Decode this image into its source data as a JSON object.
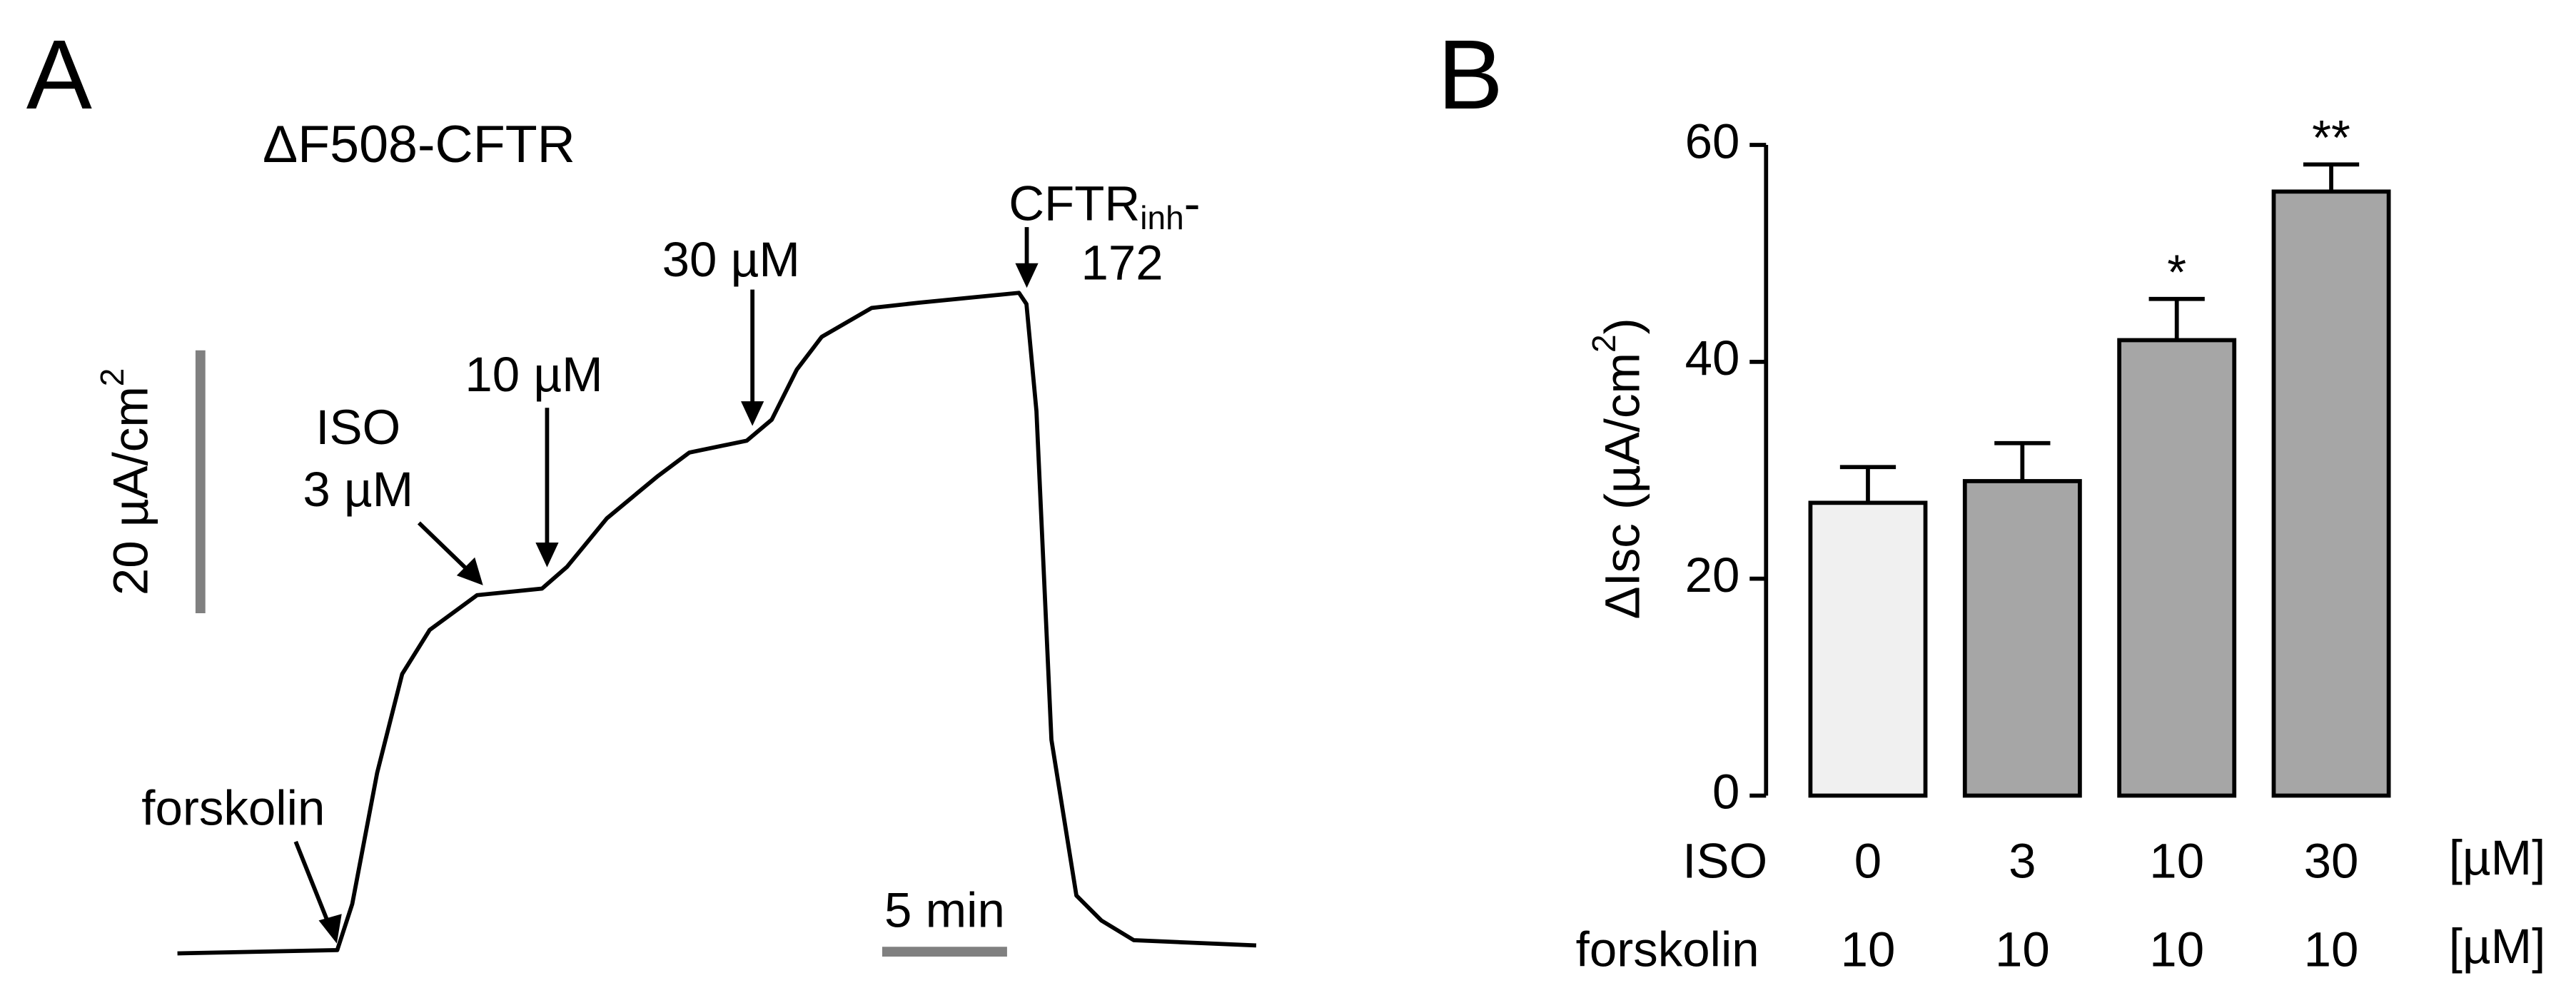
{
  "chart_data": [
    {
      "type": "line",
      "panel": "A",
      "title": "ΔF508-CFTR",
      "x": [
        0,
        6.4,
        7.0,
        8.0,
        9.0,
        10.1,
        12.0,
        14.6,
        15.6,
        17.2,
        19.2,
        20.5,
        22.8,
        23.8,
        24.8,
        25.8,
        27.8,
        29.7,
        33.7,
        34.0,
        34.4,
        35.0,
        36.0,
        37.0,
        38.3,
        43.2
      ],
      "values": [
        0,
        0.25,
        3.75,
        13.75,
        21.25,
        24.6,
        27.25,
        27.75,
        29.4,
        33.1,
        36.25,
        38.1,
        39,
        40.6,
        44.4,
        46.9,
        49.1,
        49.5,
        50.25,
        49.4,
        41.25,
        16.25,
        4.4,
        2.5,
        1,
        0.6
      ],
      "color": "#000000",
      "annotations": [
        "forskolin",
        "ISO",
        "3 µM",
        "10 µM",
        "30 µM",
        "172"
      ],
      "inhibitor": {
        "base": "CFTR",
        "sub": "inh",
        "suffix": "-"
      },
      "scale_x": {
        "value": 5,
        "label": "5 min"
      },
      "scale_y": {
        "value": 20,
        "label": "20 µA/cm",
        "label_sup": "2"
      },
      "scale_color": "#808080"
    },
    {
      "type": "bar",
      "panel": "B",
      "ylabel": "ΔIsc (µA/cm",
      "ylabel_sup": "2",
      "ylabel_end": ")",
      "category_label": "ISO",
      "categories": [
        "0",
        "3",
        "10",
        "30"
      ],
      "category_unit": "[µM]",
      "second_row": {
        "label": "forskolin",
        "values": [
          "10",
          "10",
          "10",
          "10"
        ],
        "unit": "[µM]"
      },
      "values": [
        27,
        29,
        42,
        55.7
      ],
      "errors": [
        3.3,
        3.5,
        3.8,
        2.5
      ],
      "colors": [
        "#f0f0f0",
        "#a6a6a6",
        "#a6a6a6",
        "#a6a6a6"
      ],
      "significance": [
        null,
        null,
        "*",
        "**"
      ],
      "ylim": [
        0,
        60
      ],
      "yticks": [
        0,
        20,
        40,
        60
      ]
    }
  ]
}
